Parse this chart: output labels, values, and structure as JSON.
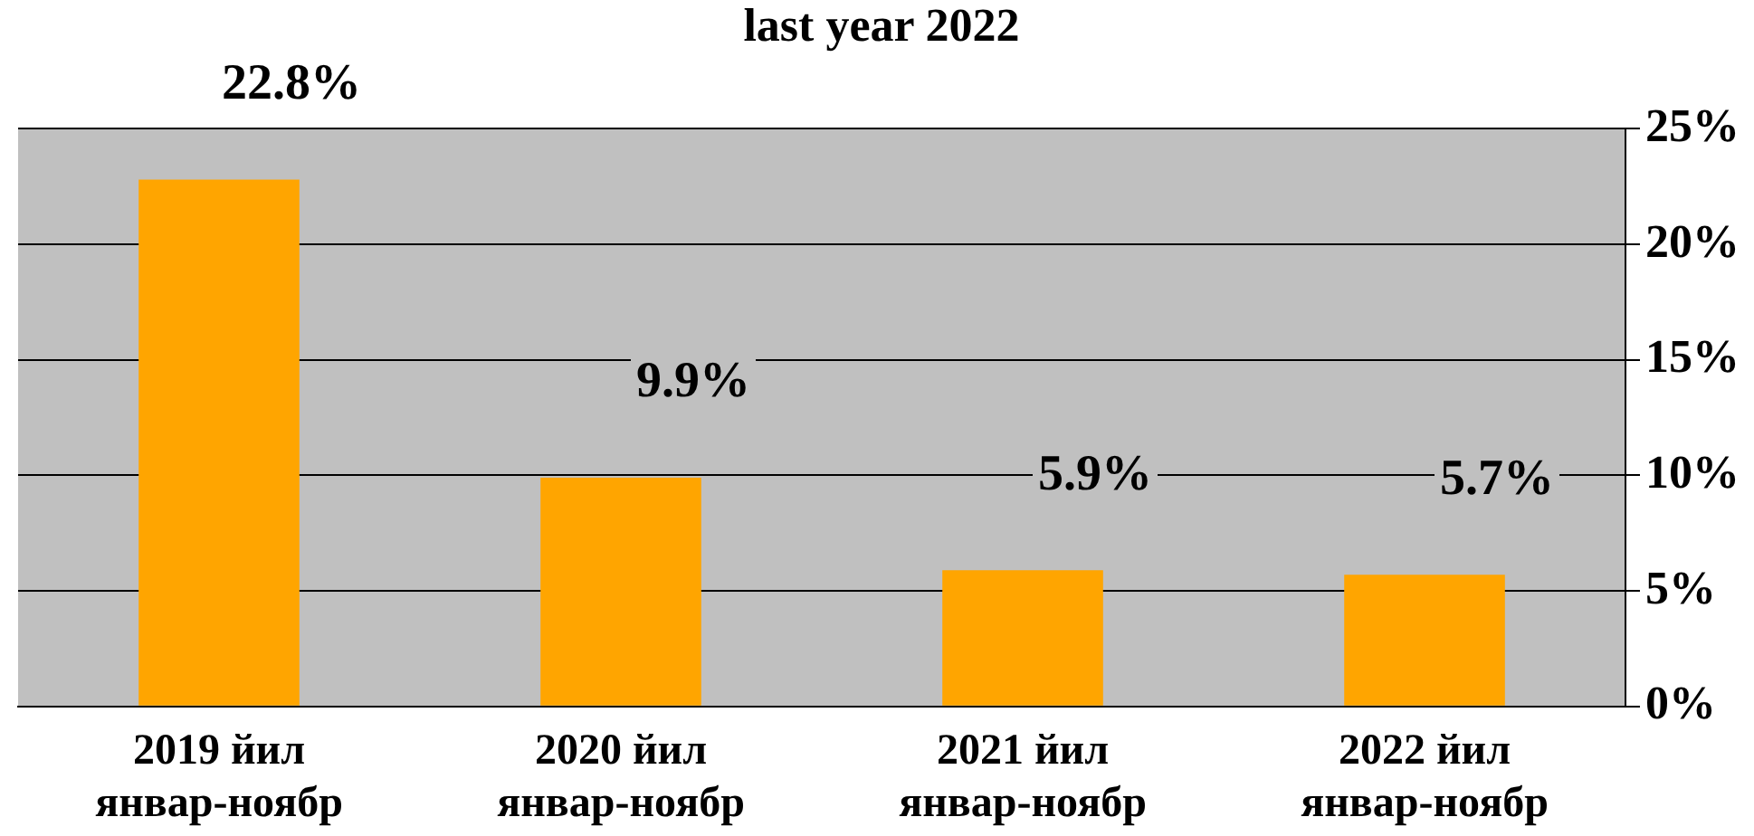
{
  "chart_data": {
    "type": "bar",
    "title": "last year 2022",
    "categories": [
      "2019 йил январ-ноябр",
      "2020 йил январ-ноябр",
      "2021 йил январ-ноябр",
      "2022 йил январ-ноябр"
    ],
    "values": [
      22.8,
      9.9,
      5.9,
      5.7
    ],
    "color": "#ffa500",
    "value_labels": [
      "22.8%",
      "9.9%",
      "5.9%",
      "5.7%"
    ],
    "ylim": [
      0,
      25
    ],
    "yticks": [
      {
        "value": 0,
        "label": "0%"
      },
      {
        "value": 5,
        "label": "5%"
      },
      {
        "value": 10,
        "label": "10%"
      },
      {
        "value": 15,
        "label": "15%"
      },
      {
        "value": 20,
        "label": "20%"
      },
      {
        "value": 25,
        "label": "25%"
      }
    ],
    "grid": "y"
  }
}
